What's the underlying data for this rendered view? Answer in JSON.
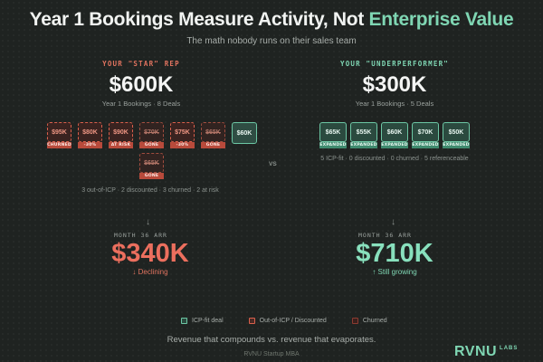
{
  "header": {
    "title_prefix": "Year 1 Bookings Measure Activity, Not ",
    "title_highlight": "Enterprise Value",
    "subtitle": "The math nobody runs on their sales team"
  },
  "left": {
    "eyebrow": "YOUR \"STAR\" REP",
    "bookings": "$600K",
    "summary": "Year 1 Bookings · 8 Deals",
    "deals": [
      {
        "value": "$95K",
        "tag": "CHURNED",
        "style": "bad"
      },
      {
        "value": "$80K",
        "tag": "-30%",
        "style": "bad"
      },
      {
        "value": "$90K",
        "tag": "AT RISK",
        "style": "bad"
      },
      {
        "value": "$70K",
        "tag": "GONE",
        "style": "bad-strike"
      },
      {
        "value": "$75K",
        "tag": "-30%",
        "style": "bad"
      },
      {
        "value": "$65K",
        "tag": "GONE",
        "style": "bad-strike"
      },
      {
        "value": "$60K",
        "tag": "",
        "style": "solid"
      },
      {
        "value": "$65K",
        "tag": "GONE",
        "style": "bad-strike"
      }
    ],
    "note": "3 out-of-ICP · 2 discounted · 3 churned · 2 at risk",
    "month_label": "MONTH 36 ARR",
    "arr": "$340K",
    "trend": "↓ Declining"
  },
  "right": {
    "eyebrow": "YOUR \"UNDERPERFORMER\"",
    "bookings": "$300K",
    "summary": "Year 1 Bookings · 5 Deals",
    "deals": [
      {
        "value": "$65K",
        "tag": "EXPANDED"
      },
      {
        "value": "$55K",
        "tag": "EXPANDED"
      },
      {
        "value": "$60K",
        "tag": "EXPANDED"
      },
      {
        "value": "$70K",
        "tag": "EXPANDED"
      },
      {
        "value": "$50K",
        "tag": "EXPANDED"
      }
    ],
    "note": "5 ICP-fit · 0 discounted · 0 churned · 5 referenceable",
    "month_label": "MONTH 36 ARR",
    "arr": "$710K",
    "trend": "↑ Still growing"
  },
  "vs_label": "VS",
  "arrow": "↓",
  "legend": [
    {
      "label": "ICP-fit deal",
      "style": "good"
    },
    {
      "label": "Out-of-ICP / Discounted",
      "style": "bad"
    },
    {
      "label": "Churned",
      "style": "churn"
    }
  ],
  "tagline": "Revenue that compounds vs. revenue that evaporates.",
  "footer": "RVNU Startup MBA",
  "logo": {
    "text": "RVNU",
    "sub": "LABS",
    "color": "#7fd6b3"
  },
  "colors": {
    "accent_green": "#7fd6b3",
    "accent_red": "#ec6f5e",
    "background": "#1f2321"
  }
}
